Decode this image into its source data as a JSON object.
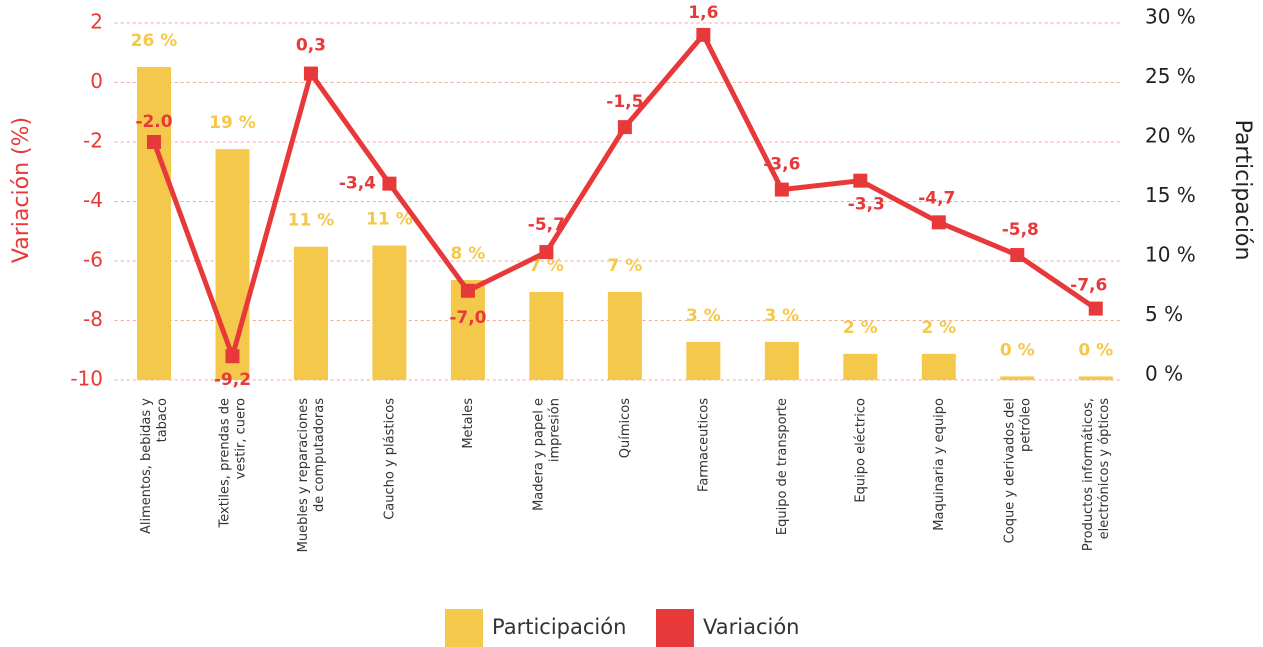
{
  "chart_data": {
    "type": "bar-line",
    "categories": [
      "Alimentos, bebidas y tabaco",
      "Textiles, prendas de vestir, cuero",
      "Muebles y reparaciones de computadoras",
      "Caucho y plásticos",
      "Metales",
      "Madera y papel e impresión",
      "Químicos",
      "Farmaceuticos",
      "Equipo de transporte",
      "Equipo eléctrico",
      "Maquinaria y equipo",
      "Coque y derivados del petróleo",
      "Productos informáticos, electrónicos y ópticos"
    ],
    "ylabel": "Variación (%)",
    "y2label": "Participación",
    "ylim": [
      -10,
      2
    ],
    "yticks": [
      -10,
      -8,
      -6,
      -4,
      -2,
      0,
      2
    ],
    "y2lim": [
      0,
      30
    ],
    "y2ticks": [
      {
        "value": 0,
        "label": "0 %"
      },
      {
        "value": 5,
        "label": "5 %"
      },
      {
        "value": 10,
        "label": "10 %"
      },
      {
        "value": 15,
        "label": "15 %"
      },
      {
        "value": 20,
        "label": "20 %"
      },
      {
        "value": 25,
        "label": "25 %"
      },
      {
        "value": 30,
        "label": "30 %"
      }
    ],
    "grid": true,
    "series": [
      {
        "name": "Participación",
        "type": "bar",
        "axis": "y2",
        "color": "#f4c84a",
        "values": [
          26.3,
          19.4,
          11.2,
          11.3,
          8.4,
          7.4,
          7.4,
          3.2,
          3.2,
          2.2,
          2.2,
          0.3,
          0.3
        ],
        "value_labels": [
          "26 %",
          "19 %",
          "11 %",
          "11 %",
          "8 %",
          "7 %",
          "7 %",
          "3 %",
          "3 %",
          "2 %",
          "2 %",
          "0 %",
          "0 %"
        ]
      },
      {
        "name": "Variación",
        "type": "line",
        "axis": "y",
        "color": "#e8393a",
        "values": [
          -2.0,
          -9.2,
          0.3,
          -3.4,
          -7.0,
          -5.7,
          -1.5,
          1.6,
          -3.6,
          -3.3,
          -4.7,
          -5.8,
          -7.6
        ],
        "value_labels": [
          "-2.0",
          "-9,2",
          "0,3",
          "-3,4",
          "-7,0",
          "-5,7",
          "-1,5",
          "1,6",
          "-3,6",
          "-3,3",
          "-4,7",
          "-5,8",
          "-7,6"
        ]
      }
    ],
    "legend": "bottom"
  }
}
